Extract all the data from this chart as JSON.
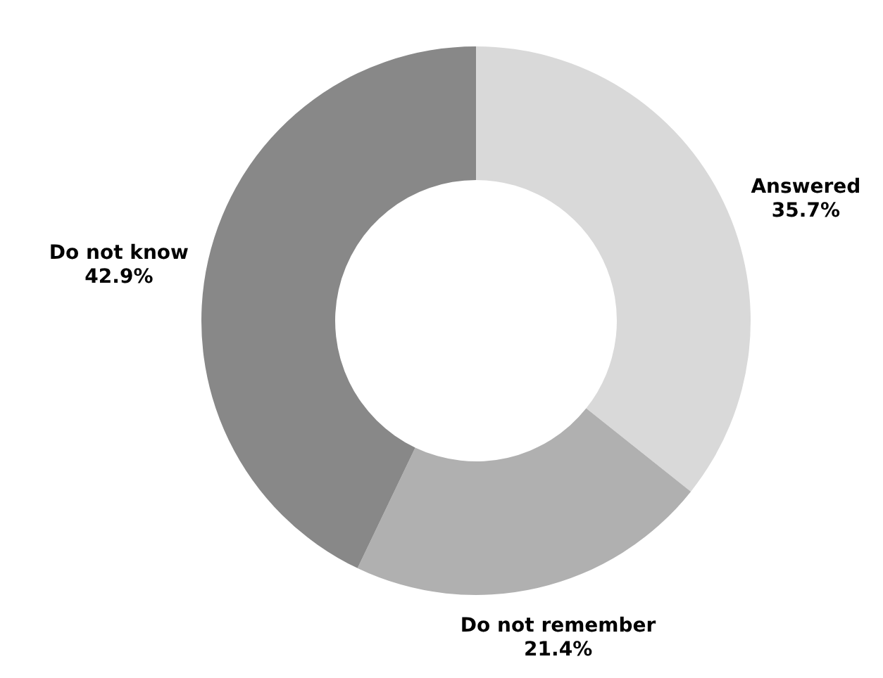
{
  "chart_data": {
    "type": "donut",
    "categories": [
      "Answered",
      "Do not remember",
      "Do not know"
    ],
    "values": [
      35.7,
      21.4,
      42.9
    ],
    "colors": [
      "#d9d9d9",
      "#b0b0b0",
      "#888888"
    ],
    "value_labels": [
      "35.7%",
      "21.4%",
      "42.9%"
    ]
  }
}
